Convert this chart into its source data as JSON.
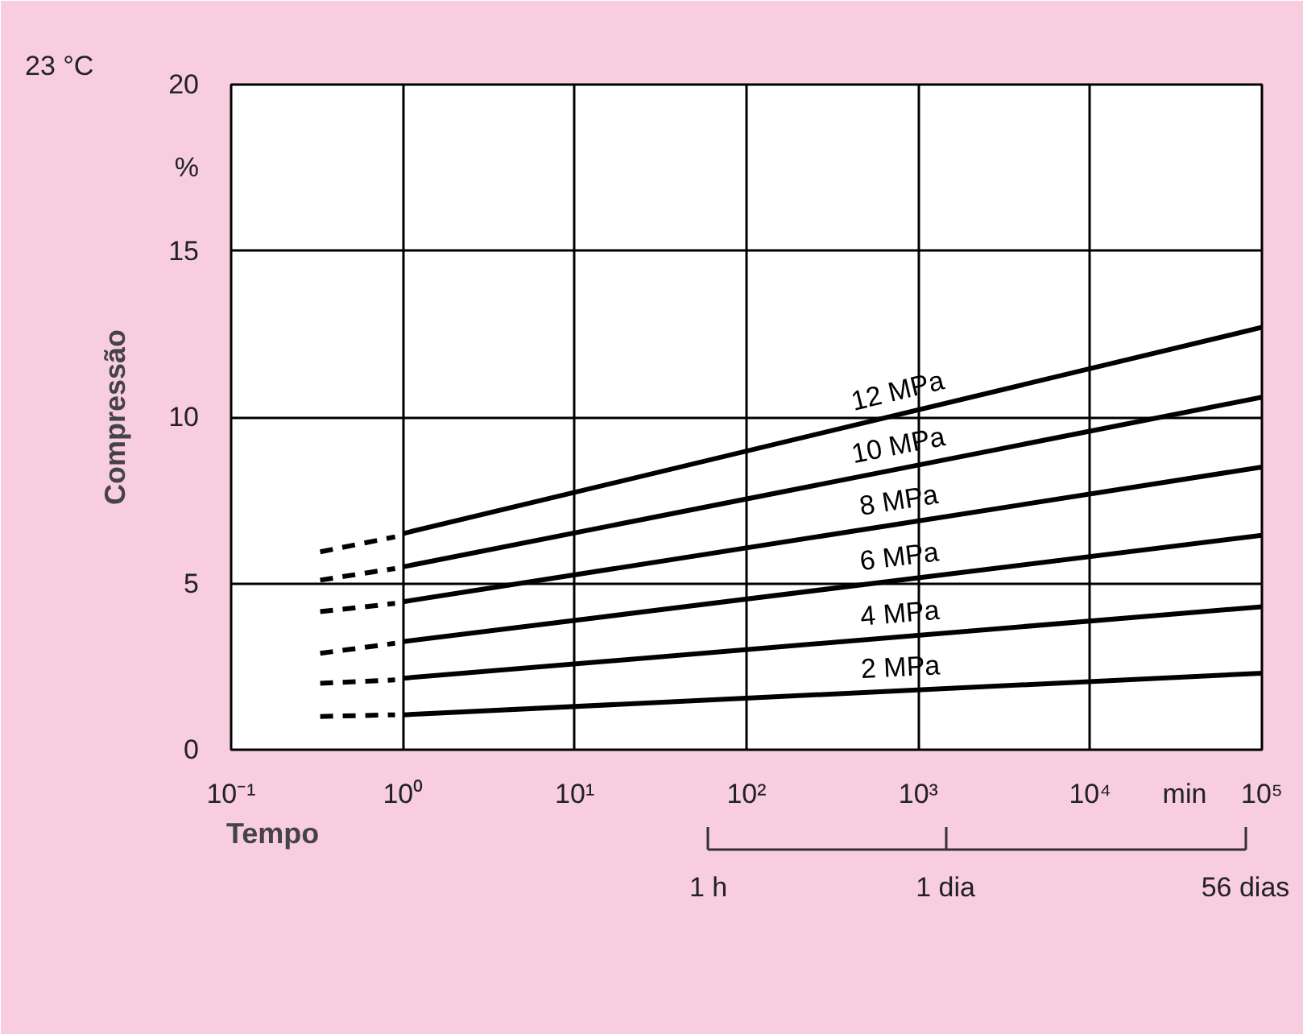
{
  "chart_data": {
    "type": "line",
    "title": "23 °C",
    "xlabel": "Tempo",
    "ylabel": "Compressão",
    "annotations": [
      "%",
      "min",
      "1 h",
      "1 dia",
      "56 dias"
    ],
    "log": "x",
    "grid": true,
    "marker": "none",
    "xlim": [
      0.1,
      100000
    ],
    "ylim": [
      0,
      20
    ],
    "xticks": [
      {
        "value": 0.1,
        "label": "10⁻¹"
      },
      {
        "value": 1,
        "label": "10⁰"
      },
      {
        "value": 10,
        "label": "10¹"
      },
      {
        "value": 100,
        "label": "10²"
      },
      {
        "value": 1000,
        "label": "10³"
      },
      {
        "value": 10000,
        "label": "10⁴"
      },
      {
        "value": 100000,
        "label": "10⁵"
      }
    ],
    "yticks": [
      0,
      5,
      10,
      15,
      20
    ],
    "series": [
      {
        "name": "12 MPa",
        "color": "#000000",
        "line_style": "solid",
        "x": [
          1,
          100000
        ],
        "values": [
          6.5,
          12.7
        ]
      },
      {
        "name": "10 MPa",
        "color": "#000000",
        "line_style": "solid",
        "x": [
          1,
          100000
        ],
        "values": [
          5.5,
          10.6
        ]
      },
      {
        "name": "8 MPa",
        "color": "#000000",
        "line_style": "solid",
        "x": [
          1,
          100000
        ],
        "values": [
          4.45,
          8.5
        ]
      },
      {
        "name": "6 MPa",
        "color": "#000000",
        "line_style": "solid",
        "x": [
          1,
          100000
        ],
        "values": [
          3.25,
          6.45
        ]
      },
      {
        "name": "4 MPa",
        "color": "#000000",
        "line_style": "solid",
        "x": [
          1,
          100000
        ],
        "values": [
          2.15,
          4.3
        ]
      },
      {
        "name": "2 MPa",
        "color": "#000000",
        "line_style": "solid",
        "x": [
          1,
          100000
        ],
        "values": [
          1.05,
          2.3
        ]
      },
      {
        "color": "#000000",
        "line_style": "dashed",
        "x": [
          0.33,
          0.9
        ],
        "values": [
          5.95,
          6.4
        ]
      },
      {
        "color": "#000000",
        "line_style": "dashed",
        "x": [
          0.33,
          0.9
        ],
        "values": [
          5.1,
          5.45
        ]
      },
      {
        "color": "#000000",
        "line_style": "dashed",
        "x": [
          0.33,
          0.9
        ],
        "values": [
          4.15,
          4.4
        ]
      },
      {
        "color": "#000000",
        "line_style": "dashed",
        "x": [
          0.33,
          0.9
        ],
        "values": [
          2.9,
          3.2
        ]
      },
      {
        "color": "#000000",
        "line_style": "dashed",
        "x": [
          0.33,
          0.9
        ],
        "values": [
          2.0,
          2.1
        ]
      },
      {
        "color": "#000000",
        "line_style": "dashed",
        "x": [
          0.33,
          0.9
        ],
        "values": [
          1.0,
          1.05
        ]
      }
    ]
  }
}
